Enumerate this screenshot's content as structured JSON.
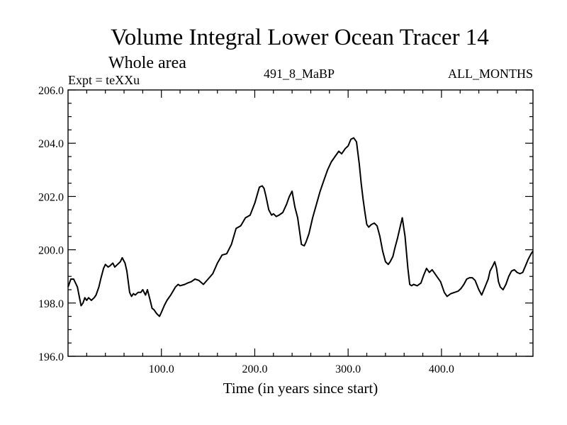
{
  "chart_data": {
    "type": "line",
    "title": "Volume Integral Lower Ocean Tracer 14",
    "subtitle": "Whole area",
    "experiment": "Expt = teXXu",
    "center_label": "491_8_MaBP",
    "right_label": "ALL_MONTHS",
    "xlabel": "Time (in years since start)",
    "ylabel": "",
    "xlim": [
      0,
      498
    ],
    "ylim": [
      196.0,
      206.0
    ],
    "x_ticks": [
      100,
      200,
      300,
      400
    ],
    "x_tick_labels": [
      "100.0",
      "200.0",
      "300.0",
      "400.0"
    ],
    "y_ticks": [
      196,
      198,
      200,
      202,
      204,
      206
    ],
    "y_tick_labels": [
      "196.0",
      "198.0",
      "200.0",
      "202.0",
      "204.0",
      "206.0"
    ],
    "series": [
      {
        "name": "Tracer 14",
        "x": [
          0,
          3,
          6,
          10,
          14,
          16,
          18,
          20,
          22,
          25,
          28,
          30,
          33,
          35,
          38,
          40,
          43,
          45,
          48,
          50,
          53,
          56,
          58,
          61,
          63,
          66,
          68,
          70,
          72,
          75,
          78,
          80,
          83,
          85,
          88,
          90,
          92,
          95,
          98,
          100,
          103,
          106,
          110,
          115,
          118,
          120,
          125,
          128,
          132,
          136,
          140,
          145,
          150,
          155,
          160,
          165,
          170,
          175,
          180,
          185,
          190,
          195,
          200,
          205,
          208,
          210,
          212,
          215,
          218,
          220,
          223,
          226,
          230,
          234,
          237,
          240,
          243,
          246,
          250,
          253,
          255,
          258,
          262,
          266,
          270,
          274,
          278,
          282,
          286,
          290,
          293,
          297,
          300,
          303,
          306,
          309,
          312,
          314,
          316,
          318,
          320,
          322,
          325,
          328,
          331,
          334,
          337,
          340,
          343,
          345,
          348,
          350,
          353,
          356,
          358,
          361,
          364,
          366,
          368,
          370,
          374,
          378,
          381,
          384,
          387,
          390,
          393,
          396,
          399,
          403,
          406,
          410,
          414,
          418,
          421,
          424,
          427,
          430,
          433,
          436,
          440,
          443,
          446,
          450,
          452,
          455,
          457,
          459,
          461,
          463,
          466,
          469,
          472,
          475,
          478,
          481,
          484,
          487,
          490,
          493,
          496,
          498
        ],
        "values": [
          198.6,
          198.9,
          198.9,
          198.6,
          197.9,
          198.0,
          198.2,
          198.1,
          198.2,
          198.1,
          198.2,
          198.3,
          198.6,
          198.9,
          199.3,
          199.45,
          199.35,
          199.4,
          199.5,
          199.35,
          199.45,
          199.55,
          199.7,
          199.5,
          199.2,
          198.4,
          198.25,
          198.35,
          198.3,
          198.4,
          198.4,
          198.5,
          198.3,
          198.5,
          198.1,
          197.8,
          197.75,
          197.6,
          197.5,
          197.65,
          197.9,
          198.1,
          198.3,
          198.6,
          198.7,
          198.65,
          198.7,
          198.75,
          198.8,
          198.9,
          198.85,
          198.7,
          198.9,
          199.1,
          199.5,
          199.8,
          199.85,
          200.2,
          200.8,
          200.9,
          201.2,
          201.3,
          201.75,
          202.35,
          202.4,
          202.3,
          202.0,
          201.5,
          201.3,
          201.35,
          201.25,
          201.3,
          201.4,
          201.7,
          202.0,
          202.2,
          201.6,
          201.2,
          200.2,
          200.15,
          200.3,
          200.6,
          201.2,
          201.7,
          202.2,
          202.6,
          203.0,
          203.3,
          203.5,
          203.7,
          203.6,
          203.8,
          203.9,
          204.15,
          204.2,
          204.05,
          203.2,
          202.5,
          201.9,
          201.4,
          200.95,
          200.85,
          200.95,
          201.0,
          200.9,
          200.5,
          199.95,
          199.55,
          199.45,
          199.55,
          199.75,
          200.05,
          200.45,
          200.9,
          201.2,
          200.5,
          199.3,
          198.7,
          198.65,
          198.7,
          198.65,
          198.75,
          199.05,
          199.3,
          199.15,
          199.25,
          199.1,
          198.95,
          198.8,
          198.4,
          198.25,
          198.35,
          198.4,
          198.45,
          198.55,
          198.7,
          198.9,
          198.95,
          198.95,
          198.85,
          198.5,
          198.3,
          198.55,
          198.9,
          199.2,
          199.4,
          199.55,
          199.3,
          198.8,
          198.6,
          198.5,
          198.7,
          199.0,
          199.2,
          199.25,
          199.15,
          199.1,
          199.15,
          199.4,
          199.65,
          199.85,
          199.95
        ]
      }
    ]
  }
}
